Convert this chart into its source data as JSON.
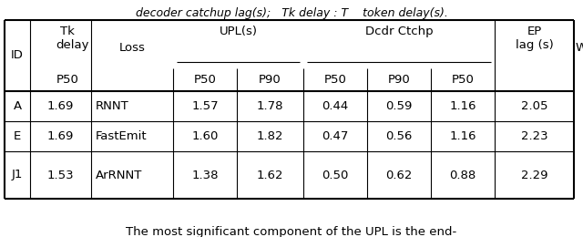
{
  "rows": [
    [
      "A",
      "1.69",
      "RNNT",
      "1.57",
      "1.78",
      "0.44",
      "0.59",
      "1.16",
      "2.05"
    ],
    [
      "E",
      "1.69",
      "FastEmit",
      "1.60",
      "1.82",
      "0.47",
      "0.56",
      "1.16",
      "2.23"
    ],
    [
      "J1",
      "1.53",
      "ArRNNT",
      "1.38",
      "1.62",
      "0.50",
      "0.62",
      "0.88",
      "2.29"
    ]
  ],
  "caption_top": "decoder catchup lag(s);   Tk delay : T    token delay(s).",
  "caption_bottom": "The most significant component of the UPL is the end-",
  "figsize": [
    6.4,
    2.6
  ],
  "dpi": 100,
  "fontsize": 9.5
}
